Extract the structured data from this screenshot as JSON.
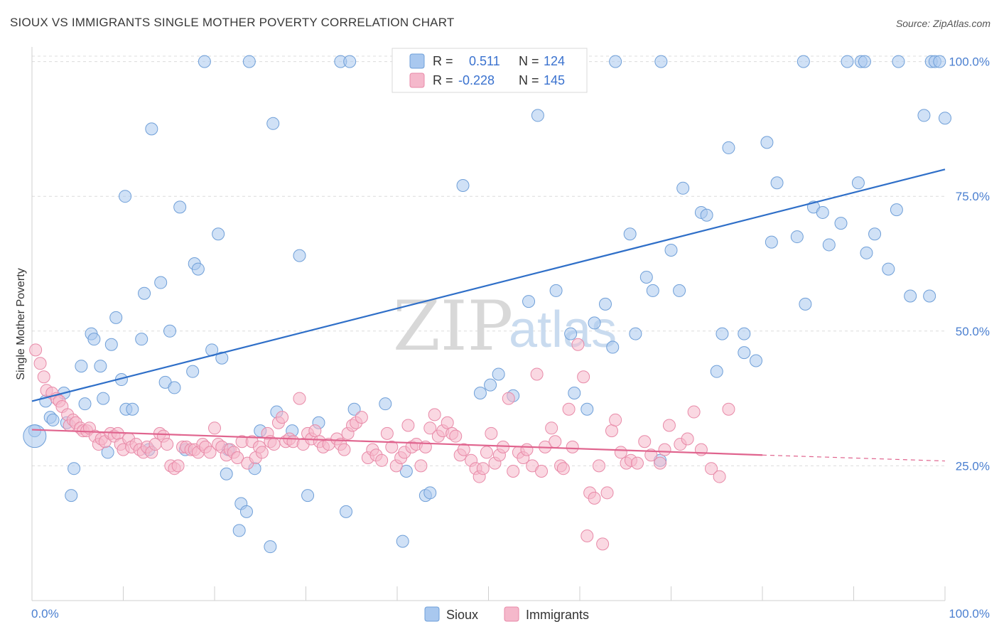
{
  "title": "SIOUX VS IMMIGRANTS SINGLE MOTHER POVERTY CORRELATION CHART",
  "source": "Source: ZipAtlas.com",
  "colors": {
    "sioux_fill": "#a9c8ef",
    "sioux_stroke": "#6f9fd8",
    "sioux_line": "#2f6fc8",
    "immigrants_fill": "#f5b8cb",
    "immigrants_stroke": "#e88aa8",
    "immigrants_line": "#e0648e",
    "tick_text": "#4a7fd0"
  },
  "legend_top": [
    {
      "r_label": "R =",
      "r_value": "0.511",
      "n_label": "N =",
      "n_value": "124"
    },
    {
      "r_label": "R =",
      "r_value": "-0.228",
      "n_label": "N =",
      "n_value": "145"
    }
  ],
  "legend_bottom": [
    "Sioux",
    "Immigrants"
  ],
  "watermark": {
    "part1": "ZIP",
    "part2": "atlas"
  },
  "chart_data": {
    "type": "scatter",
    "title": "SIOUX VS IMMIGRANTS SINGLE MOTHER POVERTY CORRELATION CHART",
    "xlabel": "",
    "ylabel": "Single Mother Poverty",
    "xlim": [
      0,
      100
    ],
    "ylim": [
      0,
      101
    ],
    "x_tick_labels": [
      "0.0%",
      "100.0%"
    ],
    "y_ticks": [
      25,
      50,
      75,
      100
    ],
    "y_tick_labels": [
      "25.0%",
      "50.0%",
      "75.0%",
      "100.0%"
    ],
    "grid": true,
    "legend_placement": "top-center",
    "series": [
      {
        "name": "Sioux",
        "r": 0.511,
        "n": 124,
        "trend": {
          "x": [
            0,
            100
          ],
          "y": [
            37.0,
            80.0
          ]
        },
        "points": [
          [
            0.3,
            31.5
          ],
          [
            1.5,
            37
          ],
          [
            2,
            34
          ],
          [
            2.3,
            33.5
          ],
          [
            3.5,
            38.5
          ],
          [
            3.8,
            33
          ],
          [
            4.3,
            19.5
          ],
          [
            4.6,
            24.5
          ],
          [
            5.4,
            43.5
          ],
          [
            5.8,
            36.5
          ],
          [
            6.5,
            49.5
          ],
          [
            6.8,
            48.5
          ],
          [
            7.5,
            43.5
          ],
          [
            7.8,
            37.5
          ],
          [
            8.3,
            27.5
          ],
          [
            8.7,
            47.5
          ],
          [
            9.2,
            52.5
          ],
          [
            9.8,
            41
          ],
          [
            10.3,
            35.5
          ],
          [
            10.2,
            75
          ],
          [
            11,
            35.5
          ],
          [
            12,
            48.5
          ],
          [
            12.8,
            28
          ],
          [
            12.3,
            57
          ],
          [
            13.1,
            87.5
          ],
          [
            14.1,
            59
          ],
          [
            14.6,
            40.5
          ],
          [
            15.1,
            50
          ],
          [
            15.6,
            39.5
          ],
          [
            16.2,
            73
          ],
          [
            16.8,
            28
          ],
          [
            17.6,
            42.5
          ],
          [
            17.8,
            62.5
          ],
          [
            18.2,
            61.5
          ],
          [
            18.9,
            100
          ],
          [
            19.7,
            46.5
          ],
          [
            20.4,
            68
          ],
          [
            20.8,
            45
          ],
          [
            21.3,
            23.5
          ],
          [
            21.5,
            28
          ],
          [
            22.7,
            13
          ],
          [
            22.9,
            18
          ],
          [
            23.5,
            16.5
          ],
          [
            23.8,
            100
          ],
          [
            24.4,
            24.5
          ],
          [
            25,
            31.5
          ],
          [
            26.1,
            10
          ],
          [
            26.4,
            88.5
          ],
          [
            26.8,
            35
          ],
          [
            28.5,
            31.5
          ],
          [
            29.3,
            64
          ],
          [
            30.2,
            19.5
          ],
          [
            31.4,
            33
          ],
          [
            33.8,
            100
          ],
          [
            34.4,
            16.5
          ],
          [
            34.8,
            100
          ],
          [
            35.3,
            35.5
          ],
          [
            38.7,
            36.5
          ],
          [
            40.6,
            11
          ],
          [
            41,
            24
          ],
          [
            43.1,
            19.5
          ],
          [
            43.6,
            20
          ],
          [
            47.2,
            77
          ],
          [
            49.1,
            38.5
          ],
          [
            50.2,
            40
          ],
          [
            51.1,
            42
          ],
          [
            52.7,
            38
          ],
          [
            54.4,
            55.5
          ],
          [
            55.4,
            90
          ],
          [
            57.4,
            57.5
          ],
          [
            57.7,
            100
          ],
          [
            59,
            49.5
          ],
          [
            59.4,
            38.5
          ],
          [
            60.8,
            35.5
          ],
          [
            61.6,
            51.5
          ],
          [
            62.8,
            55
          ],
          [
            63.6,
            47
          ],
          [
            63.9,
            100
          ],
          [
            65.5,
            68
          ],
          [
            66.1,
            49.5
          ],
          [
            67.3,
            60
          ],
          [
            68,
            57.5
          ],
          [
            68.8,
            26
          ],
          [
            68.9,
            100
          ],
          [
            70,
            65
          ],
          [
            70.9,
            57.5
          ],
          [
            71.3,
            76.5
          ],
          [
            73.3,
            72
          ],
          [
            73.9,
            71.5
          ],
          [
            75,
            42.5
          ],
          [
            75.6,
            49.5
          ],
          [
            76.3,
            84
          ],
          [
            78,
            46
          ],
          [
            78,
            49.5
          ],
          [
            79.3,
            44.5
          ],
          [
            80.5,
            85
          ],
          [
            81,
            66.5
          ],
          [
            81.6,
            77.5
          ],
          [
            83.8,
            67.5
          ],
          [
            84.5,
            100
          ],
          [
            84.7,
            55
          ],
          [
            85.6,
            73
          ],
          [
            86.6,
            72
          ],
          [
            87.3,
            66
          ],
          [
            88.6,
            70
          ],
          [
            89.3,
            100
          ],
          [
            90.5,
            77.5
          ],
          [
            90.8,
            100
          ],
          [
            91.2,
            100
          ],
          [
            91.4,
            64.5
          ],
          [
            92.3,
            68
          ],
          [
            93.8,
            61.5
          ],
          [
            94.7,
            72.5
          ],
          [
            94.9,
            100
          ],
          [
            96.2,
            56.5
          ],
          [
            97.7,
            90
          ],
          [
            98.3,
            56.5
          ],
          [
            98.5,
            100
          ],
          [
            98.9,
            100
          ],
          [
            99.4,
            100
          ],
          [
            100,
            89.5
          ]
        ]
      },
      {
        "name": "Immigrants",
        "r": -0.228,
        "n": 145,
        "trend": {
          "x": [
            0,
            80
          ],
          "y": [
            31.7,
            27.0
          ]
        },
        "trend_dashed": {
          "x": [
            80,
            100
          ],
          "y": [
            27.0,
            25.9
          ]
        },
        "points": [
          [
            0.4,
            46.5
          ],
          [
            0.9,
            44
          ],
          [
            1.3,
            41.5
          ],
          [
            1.6,
            39
          ],
          [
            2.2,
            38.5
          ],
          [
            2.7,
            37.5
          ],
          [
            3,
            37
          ],
          [
            3.3,
            36
          ],
          [
            3.9,
            34.5
          ],
          [
            4.1,
            32.5
          ],
          [
            4.5,
            33.5
          ],
          [
            4.8,
            33
          ],
          [
            5.3,
            32
          ],
          [
            5.6,
            31.5
          ],
          [
            6,
            31.5
          ],
          [
            6.3,
            32
          ],
          [
            6.9,
            30.5
          ],
          [
            7.3,
            29
          ],
          [
            7.6,
            30
          ],
          [
            8,
            29.5
          ],
          [
            8.6,
            31
          ],
          [
            9,
            30.5
          ],
          [
            9.4,
            31
          ],
          [
            9.7,
            29
          ],
          [
            10,
            28
          ],
          [
            10.6,
            30
          ],
          [
            10.9,
            28.5
          ],
          [
            11.4,
            29
          ],
          [
            11.8,
            28
          ],
          [
            12.2,
            27.5
          ],
          [
            12.6,
            28.5
          ],
          [
            13.1,
            27.5
          ],
          [
            13.5,
            29
          ],
          [
            14,
            31
          ],
          [
            14.4,
            30.5
          ],
          [
            14.8,
            29
          ],
          [
            15.2,
            25
          ],
          [
            15.6,
            24.5
          ],
          [
            16,
            25
          ],
          [
            16.5,
            28.5
          ],
          [
            16.9,
            28.5
          ],
          [
            17.4,
            28
          ],
          [
            17.8,
            28
          ],
          [
            18.2,
            27.5
          ],
          [
            18.7,
            29
          ],
          [
            19,
            28.5
          ],
          [
            19.5,
            27.5
          ],
          [
            20,
            32
          ],
          [
            20.4,
            29
          ],
          [
            20.8,
            28.5
          ],
          [
            21.3,
            27
          ],
          [
            21.7,
            28
          ],
          [
            22.1,
            27.5
          ],
          [
            22.5,
            26.5
          ],
          [
            23,
            29.5
          ],
          [
            23.6,
            25.5
          ],
          [
            24.1,
            29.5
          ],
          [
            24.5,
            26.5
          ],
          [
            24.9,
            28.5
          ],
          [
            25.2,
            27.5
          ],
          [
            25.8,
            31
          ],
          [
            26.1,
            29.5
          ],
          [
            26.5,
            29
          ],
          [
            27,
            33
          ],
          [
            27.4,
            34
          ],
          [
            27.8,
            29.5
          ],
          [
            28.2,
            30
          ],
          [
            28.6,
            29.5
          ],
          [
            29.3,
            37.5
          ],
          [
            29.7,
            29
          ],
          [
            30.2,
            31
          ],
          [
            30.6,
            30
          ],
          [
            31,
            31.5
          ],
          [
            31.5,
            29.5
          ],
          [
            31.9,
            28.5
          ],
          [
            32.5,
            29
          ],
          [
            33.4,
            30
          ],
          [
            33.8,
            29
          ],
          [
            34.2,
            28
          ],
          [
            34.6,
            31
          ],
          [
            35.1,
            32.5
          ],
          [
            35.5,
            33
          ],
          [
            36.1,
            34
          ],
          [
            36.8,
            26.5
          ],
          [
            37.3,
            28
          ],
          [
            37.7,
            27
          ],
          [
            38.3,
            26
          ],
          [
            38.9,
            31
          ],
          [
            39.4,
            28.5
          ],
          [
            39.9,
            25
          ],
          [
            40.4,
            26.5
          ],
          [
            40.8,
            27.5
          ],
          [
            41.2,
            32.5
          ],
          [
            41.6,
            28.5
          ],
          [
            42.1,
            29
          ],
          [
            42.6,
            25
          ],
          [
            43.1,
            28.5
          ],
          [
            43.6,
            32
          ],
          [
            44.1,
            34.5
          ],
          [
            44.5,
            30.5
          ],
          [
            45,
            31.5
          ],
          [
            45.5,
            33
          ],
          [
            46,
            31
          ],
          [
            46.4,
            30.5
          ],
          [
            46.9,
            27
          ],
          [
            47.3,
            28
          ],
          [
            48.1,
            26
          ],
          [
            48.6,
            24.5
          ],
          [
            49,
            23
          ],
          [
            49.4,
            24.5
          ],
          [
            49.8,
            27.5
          ],
          [
            50.3,
            31
          ],
          [
            50.7,
            25.5
          ],
          [
            51.2,
            27
          ],
          [
            51.6,
            28.5
          ],
          [
            52.2,
            37.5
          ],
          [
            52.7,
            24
          ],
          [
            53.3,
            27.5
          ],
          [
            53.8,
            26.5
          ],
          [
            54.2,
            28
          ],
          [
            54.8,
            25
          ],
          [
            55.3,
            42
          ],
          [
            55.8,
            24
          ],
          [
            56.2,
            28.5
          ],
          [
            56.9,
            32
          ],
          [
            57.3,
            29.5
          ],
          [
            57.9,
            25
          ],
          [
            58.2,
            24.5
          ],
          [
            58.8,
            35.5
          ],
          [
            59.2,
            28.5
          ],
          [
            59.8,
            47.5
          ],
          [
            60.4,
            41.5
          ],
          [
            60.8,
            12
          ],
          [
            61.1,
            20
          ],
          [
            61.6,
            19
          ],
          [
            62.1,
            25
          ],
          [
            62.5,
            10.5
          ],
          [
            63,
            20
          ],
          [
            63.5,
            31.5
          ],
          [
            63.9,
            33.5
          ],
          [
            64.5,
            27.5
          ],
          [
            65.1,
            25.5
          ],
          [
            65.6,
            26
          ],
          [
            66.3,
            25.5
          ],
          [
            67.1,
            29.5
          ],
          [
            67.8,
            27
          ],
          [
            68.8,
            25.5
          ],
          [
            69.3,
            28
          ],
          [
            69.8,
            32.5
          ],
          [
            71,
            29
          ],
          [
            71.8,
            30
          ],
          [
            72.5,
            35
          ],
          [
            73.3,
            28
          ],
          [
            74.4,
            24.5
          ],
          [
            75.3,
            23
          ],
          [
            76.3,
            35.5
          ]
        ]
      }
    ]
  }
}
